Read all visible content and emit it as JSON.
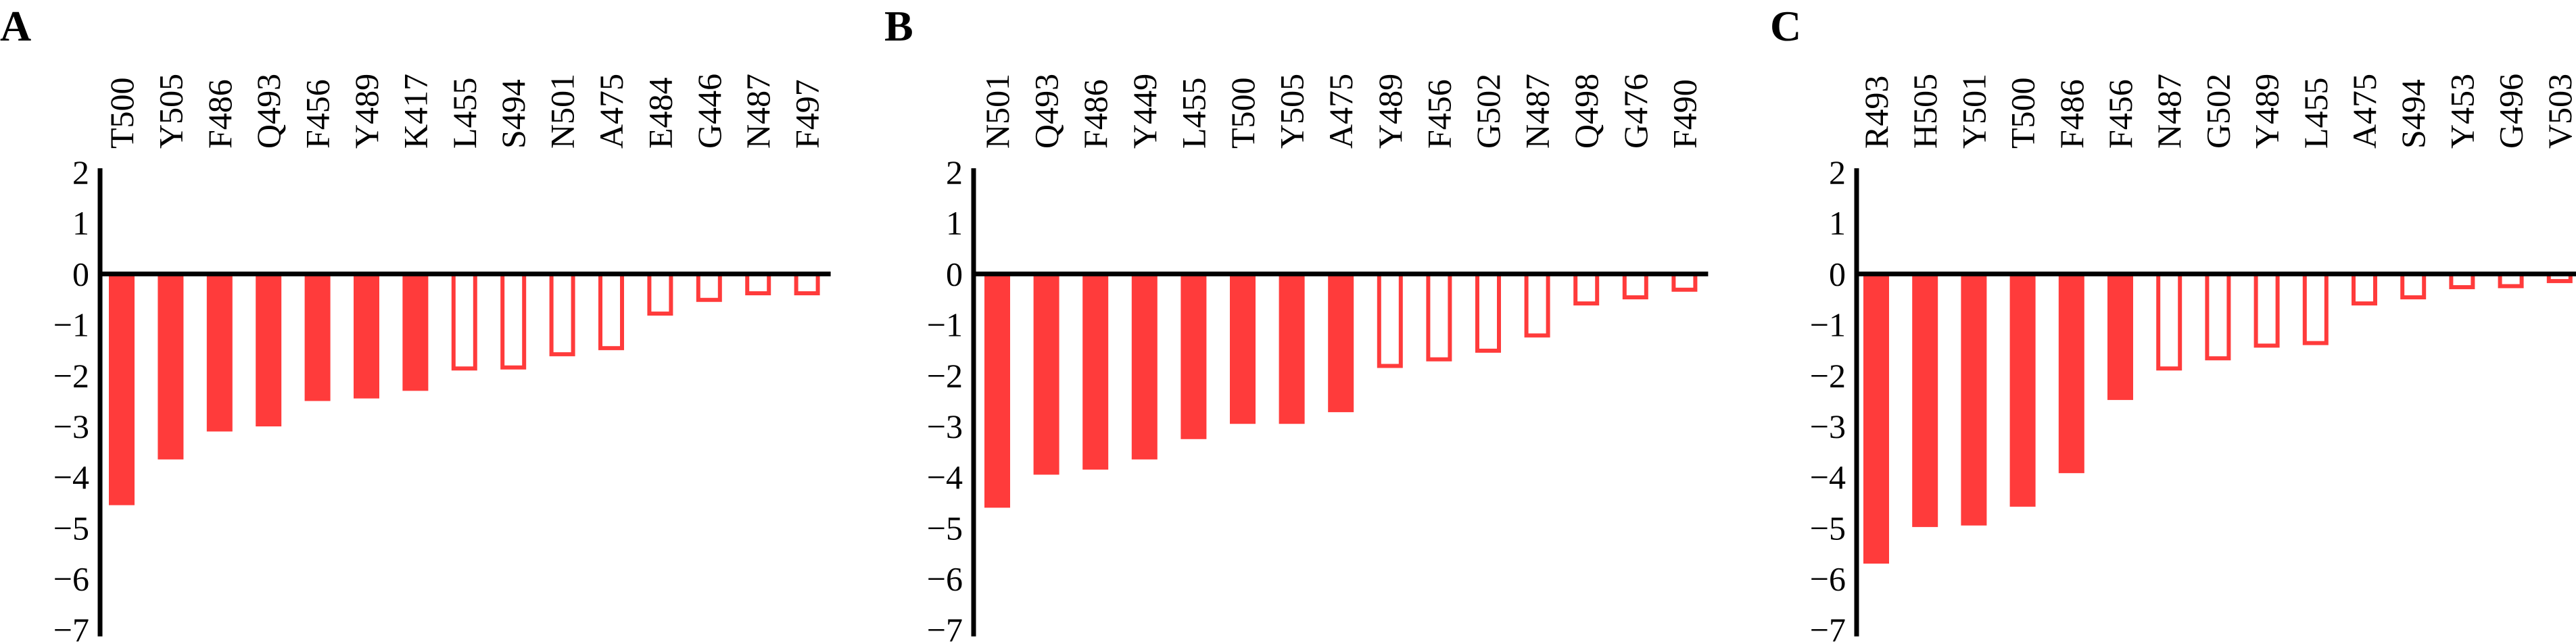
{
  "colors": {
    "bar": "#ff3b3b",
    "axis": "#000000",
    "background": "#ffffff"
  },
  "chart_data": [
    {
      "type": "bar",
      "panel_label": "A",
      "title": "",
      "xlabel": "",
      "ylabel": "",
      "ylim": [
        -7,
        2
      ],
      "yticks": [
        "2",
        "1",
        "0",
        "−1",
        "−2",
        "−3",
        "−4",
        "−5",
        "−6",
        "−7"
      ],
      "grid": false,
      "categories": [
        "T500",
        "Y505",
        "F486",
        "Q493",
        "F456",
        "Y489",
        "K417",
        "L455",
        "S494",
        "N501",
        "A475",
        "E484",
        "G446",
        "N487",
        "F497"
      ],
      "values": [
        -4.55,
        -3.65,
        -3.1,
        -3.0,
        -2.5,
        -2.45,
        -2.3,
        -1.9,
        -1.88,
        -1.62,
        -1.5,
        -0.82,
        -0.55,
        -0.42,
        -0.42
      ],
      "filled": [
        true,
        true,
        true,
        true,
        true,
        true,
        true,
        false,
        false,
        false,
        false,
        false,
        false,
        false,
        false
      ]
    },
    {
      "type": "bar",
      "panel_label": "B",
      "title": "",
      "xlabel": "",
      "ylabel": "",
      "ylim": [
        -7,
        2
      ],
      "yticks": [
        "2",
        "1",
        "0",
        "−1",
        "−2",
        "−3",
        "−4",
        "−5",
        "−6",
        "−7"
      ],
      "grid": false,
      "categories": [
        "N501",
        "Q493",
        "F486",
        "Y449",
        "L455",
        "T500",
        "Y505",
        "A475",
        "Y489",
        "F456",
        "G502",
        "N487",
        "Q498",
        "G476",
        "F490"
      ],
      "values": [
        -4.6,
        -3.95,
        -3.85,
        -3.65,
        -3.25,
        -2.95,
        -2.95,
        -2.72,
        -1.85,
        -1.72,
        -1.55,
        -1.25,
        -0.62,
        -0.5,
        -0.35
      ],
      "filled": [
        true,
        true,
        true,
        true,
        true,
        true,
        true,
        true,
        false,
        false,
        false,
        false,
        false,
        false,
        false
      ]
    },
    {
      "type": "bar",
      "panel_label": "C",
      "title": "",
      "xlabel": "",
      "ylabel": "",
      "ylim": [
        -7,
        2
      ],
      "yticks": [
        "2",
        "1",
        "0",
        "−1",
        "−2",
        "−3",
        "−4",
        "−5",
        "−6",
        "−7"
      ],
      "grid": false,
      "categories": [
        "R493",
        "H505",
        "Y501",
        "T500",
        "F486",
        "F456",
        "N487",
        "G502",
        "Y489",
        "L455",
        "A475",
        "S494",
        "Y453",
        "G496",
        "V503"
      ],
      "values": [
        -5.7,
        -4.98,
        -4.95,
        -4.58,
        -3.92,
        -2.48,
        -1.9,
        -1.7,
        -1.45,
        -1.4,
        -0.62,
        -0.5,
        -0.3,
        -0.28,
        -0.18
      ],
      "filled": [
        true,
        true,
        true,
        true,
        true,
        true,
        false,
        false,
        false,
        false,
        false,
        false,
        false,
        false,
        false
      ]
    }
  ]
}
